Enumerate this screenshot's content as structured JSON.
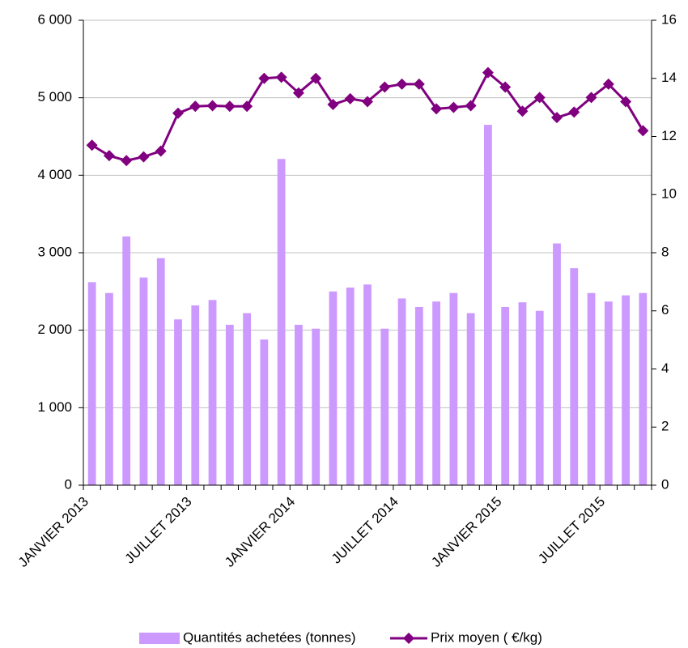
{
  "chart_data": {
    "type": "bar",
    "categories": [
      "JANVIER 2013",
      null,
      null,
      null,
      null,
      null,
      "JUILLET 2013",
      null,
      null,
      null,
      null,
      null,
      "JANVIER 2014",
      null,
      null,
      null,
      null,
      null,
      "JUILLET 2014",
      null,
      null,
      null,
      null,
      null,
      "JANVIER 2015",
      null,
      null,
      null,
      null,
      null,
      "JUILLET 2015",
      null,
      null
    ],
    "series": [
      {
        "name": "Quantités achetées (tonnes)",
        "type": "bar",
        "color": "#cc99ff",
        "values": [
          2620,
          2480,
          3210,
          2680,
          2930,
          2140,
          2320,
          2390,
          2070,
          2220,
          1880,
          4210,
          2070,
          2020,
          2500,
          2550,
          2590,
          2020,
          2410,
          2300,
          2370,
          2480,
          2220,
          4650,
          2300,
          2360,
          2250,
          3120,
          2800,
          2480,
          2370,
          2450,
          2480
        ]
      },
      {
        "name": "Prix moyen ( €/kg)",
        "type": "line",
        "axis": "y2",
        "color": "#800080",
        "values": [
          11.7,
          11.34,
          11.17,
          11.3,
          11.5,
          12.8,
          13.04,
          13.06,
          13.04,
          13.04,
          14.0,
          14.04,
          13.5,
          14.0,
          13.1,
          13.3,
          13.2,
          13.7,
          13.8,
          13.8,
          12.95,
          13.0,
          13.06,
          14.2,
          13.7,
          12.87,
          13.34,
          12.65,
          12.84,
          13.34,
          13.8,
          13.2,
          12.2
        ]
      }
    ],
    "ylim": [
      0,
      6000
    ],
    "yticks": [
      0,
      {
        "value": 1000,
        "label": "1 000"
      },
      {
        "value": 2000,
        "label": "2 000"
      },
      {
        "value": 3000,
        "label": "3 000"
      },
      {
        "value": 4000,
        "label": "4 000"
      },
      {
        "value": 5000,
        "label": "5 000"
      },
      {
        "value": 6000,
        "label": "6 000"
      }
    ],
    "y2lim": [
      0,
      16
    ],
    "y2ticks": [
      0,
      2,
      4,
      6,
      8,
      10,
      12,
      14,
      16
    ],
    "grid": true,
    "legend": "bottom"
  }
}
